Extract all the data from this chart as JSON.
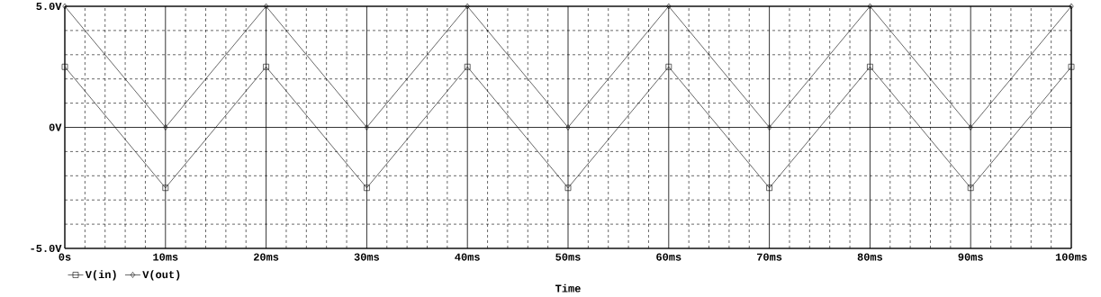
{
  "chart_data": {
    "type": "line",
    "xlabel": "Time",
    "x": [
      0,
      10,
      20,
      30,
      40,
      50,
      60,
      70,
      80,
      90,
      100
    ],
    "series": [
      {
        "name": "V(in)",
        "color": "#000000",
        "marker": "square",
        "values": [
          2.5,
          -2.5,
          2.5,
          -2.5,
          2.5,
          -2.5,
          2.5,
          -2.5,
          2.5,
          -2.5,
          2.5
        ]
      },
      {
        "name": "V(out)",
        "color": "#000000",
        "marker": "diamond",
        "values": [
          5,
          0,
          5,
          0,
          5,
          0,
          5,
          0,
          5,
          0,
          5
        ]
      }
    ],
    "xlim": [
      0,
      100
    ],
    "ylim": [
      -5,
      5
    ],
    "xticks": [
      {
        "value": 0,
        "label": "0s"
      },
      {
        "value": 2,
        "label": null
      },
      {
        "value": 4,
        "label": null
      },
      {
        "value": 6,
        "label": null
      },
      {
        "value": 8,
        "label": null
      },
      {
        "value": 10,
        "label": "10ms"
      },
      {
        "value": 12,
        "label": null
      },
      {
        "value": 14,
        "label": null
      },
      {
        "value": 16,
        "label": null
      },
      {
        "value": 18,
        "label": null
      },
      {
        "value": 20,
        "label": "20ms"
      },
      {
        "value": 22,
        "label": null
      },
      {
        "value": 24,
        "label": null
      },
      {
        "value": 26,
        "label": null
      },
      {
        "value": 28,
        "label": null
      },
      {
        "value": 30,
        "label": "30ms"
      },
      {
        "value": 32,
        "label": null
      },
      {
        "value": 34,
        "label": null
      },
      {
        "value": 36,
        "label": null
      },
      {
        "value": 38,
        "label": null
      },
      {
        "value": 40,
        "label": "40ms"
      },
      {
        "value": 42,
        "label": null
      },
      {
        "value": 44,
        "label": null
      },
      {
        "value": 46,
        "label": null
      },
      {
        "value": 48,
        "label": null
      },
      {
        "value": 50,
        "label": "50ms"
      },
      {
        "value": 52,
        "label": null
      },
      {
        "value": 54,
        "label": null
      },
      {
        "value": 56,
        "label": null
      },
      {
        "value": 58,
        "label": null
      },
      {
        "value": 60,
        "label": "60ms"
      },
      {
        "value": 62,
        "label": null
      },
      {
        "value": 64,
        "label": null
      },
      {
        "value": 66,
        "label": null
      },
      {
        "value": 68,
        "label": null
      },
      {
        "value": 70,
        "label": "70ms"
      },
      {
        "value": 72,
        "label": null
      },
      {
        "value": 74,
        "label": null
      },
      {
        "value": 76,
        "label": null
      },
      {
        "value": 78,
        "label": null
      },
      {
        "value": 80,
        "label": "80ms"
      },
      {
        "value": 82,
        "label": null
      },
      {
        "value": 84,
        "label": null
      },
      {
        "value": 86,
        "label": null
      },
      {
        "value": 88,
        "label": null
      },
      {
        "value": 90,
        "label": "90ms"
      },
      {
        "value": 92,
        "label": null
      },
      {
        "value": 94,
        "label": null
      },
      {
        "value": 96,
        "label": null
      },
      {
        "value": 98,
        "label": null
      },
      {
        "value": 100,
        "label": "100ms"
      }
    ],
    "yticks": [
      {
        "value": -5,
        "label": "-5.0V"
      },
      {
        "value": -4,
        "label": null
      },
      {
        "value": -3,
        "label": null
      },
      {
        "value": -2,
        "label": null
      },
      {
        "value": -1,
        "label": null
      },
      {
        "value": 0,
        "label": "0V"
      },
      {
        "value": 1,
        "label": null
      },
      {
        "value": 2,
        "label": null
      },
      {
        "value": 3,
        "label": null
      },
      {
        "value": 4,
        "label": null
      },
      {
        "value": 5,
        "label": "5.0V"
      }
    ],
    "grid": true,
    "legend": "bottom left",
    "line_style": "solid"
  }
}
